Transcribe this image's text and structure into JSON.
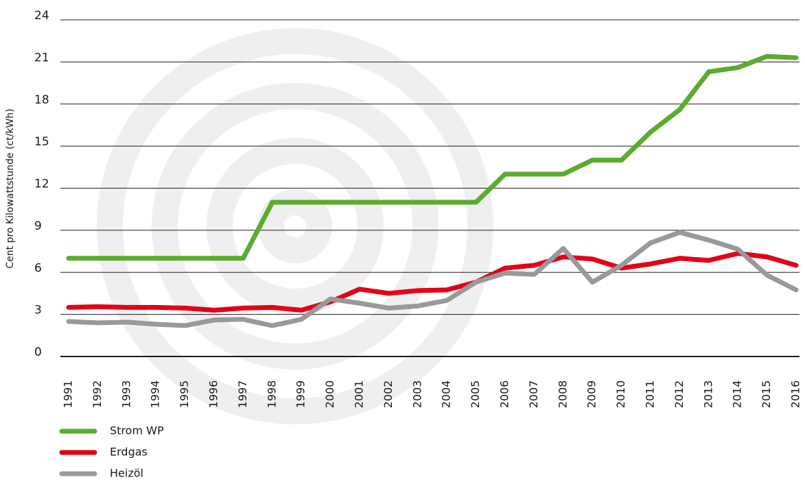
{
  "chart_data": {
    "type": "line",
    "y_axis_label": "Cent pro Kilowattstunde (ct/kWh)",
    "categories": [
      "1991",
      "1992",
      "1993",
      "1994",
      "1995",
      "1996",
      "1997",
      "1998",
      "1999",
      "2000",
      "2001",
      "2002",
      "2003",
      "2004",
      "2005",
      "2006",
      "2007",
      "2008",
      "2009",
      "2010",
      "2011",
      "2012",
      "2013",
      "2014",
      "2015",
      "2016"
    ],
    "series": [
      {
        "name": "Strom WP",
        "color": "#5aac2e",
        "values": [
          7,
          7,
          7,
          7,
          7,
          7,
          7,
          11,
          11,
          11,
          11,
          11,
          11,
          11,
          11,
          13,
          13,
          13,
          14,
          14,
          16,
          17.6,
          20.3,
          20.6,
          21.4,
          21.3
        ]
      },
      {
        "name": "Erdgas",
        "color": "#e2001a",
        "values": [
          3.5,
          3.55,
          3.5,
          3.5,
          3.45,
          3.3,
          3.45,
          3.5,
          3.3,
          3.9,
          4.8,
          4.5,
          4.7,
          4.75,
          5.3,
          6.3,
          6.5,
          7.1,
          6.95,
          6.3,
          6.6,
          7.0,
          6.85,
          7.35,
          7.1,
          6.5
        ]
      },
      {
        "name": "Heizöl",
        "color": "#999999",
        "values": [
          2.5,
          2.4,
          2.45,
          2.3,
          2.2,
          2.6,
          2.65,
          2.2,
          2.65,
          4.1,
          3.8,
          3.45,
          3.6,
          4.0,
          5.3,
          5.95,
          5.85,
          7.7,
          5.3,
          6.5,
          8.1,
          8.85,
          8.3,
          7.65,
          5.8,
          4.75
        ]
      }
    ],
    "ylim": [
      0,
      24
    ],
    "yticks": [
      0,
      3,
      6,
      9,
      12,
      15,
      18,
      21,
      24
    ],
    "grid": true
  }
}
